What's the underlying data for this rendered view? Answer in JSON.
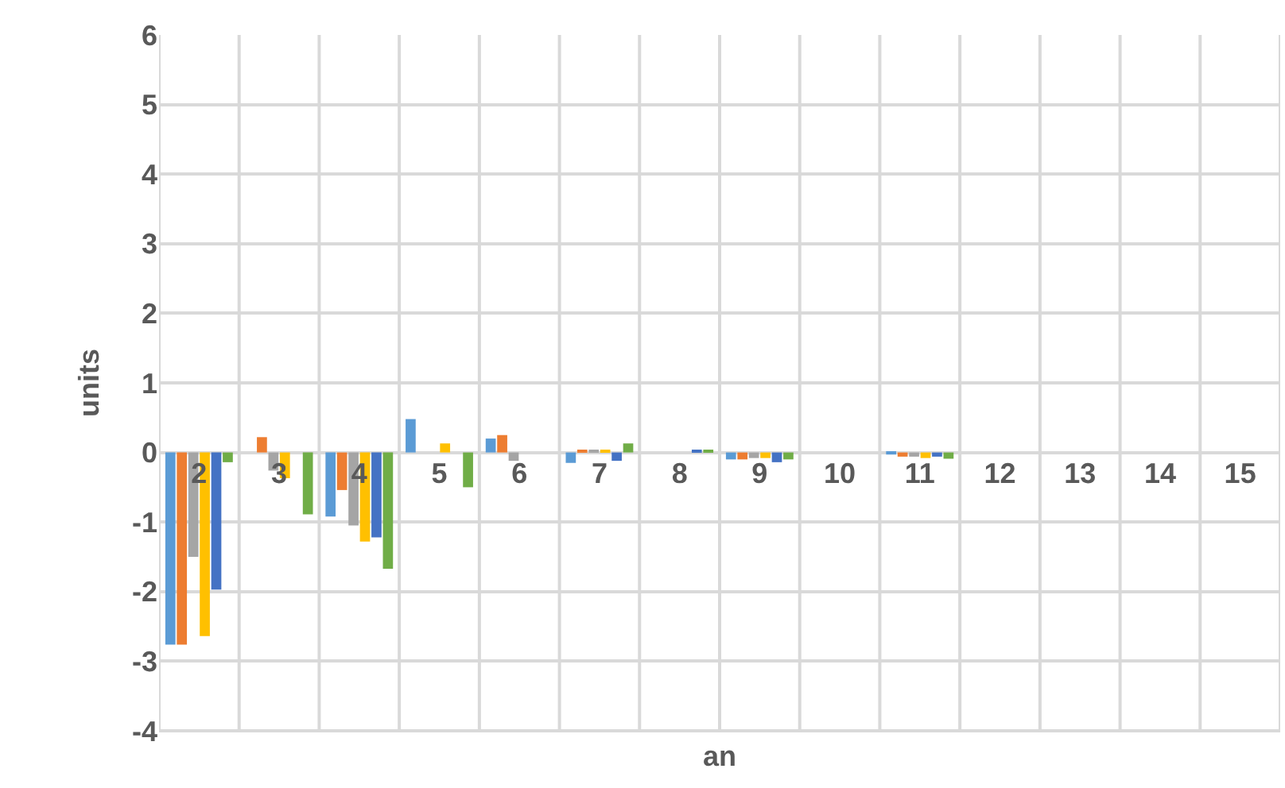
{
  "chart_data": {
    "type": "bar",
    "xlabel": "an",
    "ylabel": "units",
    "categories": [
      "2",
      "3",
      "4",
      "5",
      "6",
      "7",
      "8",
      "9",
      "10",
      "11",
      "12",
      "13",
      "14",
      "15"
    ],
    "series": [
      {
        "color": "#5b9bd5",
        "values": [
          -2.76,
          0,
          -0.92,
          0.48,
          0.2,
          -0.15,
          0,
          -0.1,
          0,
          -0.03,
          0,
          0,
          0,
          0
        ]
      },
      {
        "color": "#ed7d31",
        "values": [
          -2.76,
          0.22,
          -0.54,
          0,
          0.25,
          0.03,
          0,
          -0.1,
          0,
          -0.06,
          0,
          0,
          0,
          0
        ]
      },
      {
        "color": "#a5a5a5",
        "values": [
          -1.5,
          -0.26,
          -1.05,
          0,
          -0.12,
          0.03,
          0,
          -0.08,
          0,
          -0.06,
          0,
          0,
          0,
          0
        ]
      },
      {
        "color": "#ffc000",
        "values": [
          -2.64,
          -0.37,
          -1.28,
          0.13,
          0,
          0.03,
          0,
          -0.08,
          0,
          -0.08,
          0,
          0,
          0,
          0
        ]
      },
      {
        "color": "#4472c4",
        "values": [
          -1.97,
          0,
          -1.22,
          0,
          0,
          -0.12,
          0.03,
          -0.14,
          0,
          -0.06,
          0,
          0,
          0,
          0
        ]
      },
      {
        "color": "#70ad47",
        "values": [
          -0.14,
          -0.89,
          -1.67,
          -0.5,
          0,
          0.13,
          0.03,
          -0.1,
          0,
          -0.09,
          0,
          0,
          0,
          0
        ]
      }
    ],
    "ylim": [
      -4,
      6
    ],
    "yticks": [
      -4,
      -3,
      -2,
      -1,
      0,
      1,
      2,
      3,
      4,
      5,
      6
    ],
    "grid": true,
    "legend": false
  }
}
